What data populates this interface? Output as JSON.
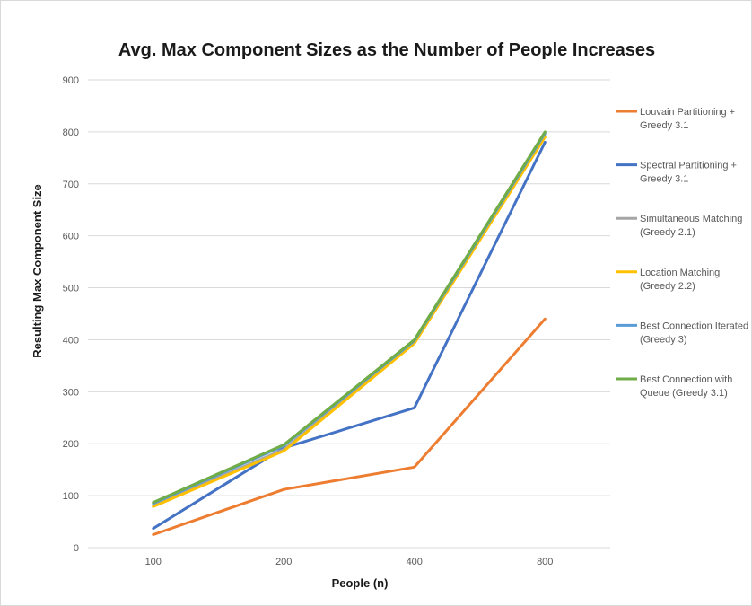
{
  "chart_data": {
    "type": "line",
    "title": "Avg. Max Component Sizes as the Number of People Increases",
    "xlabel": "People (n)",
    "ylabel": "Resulting Max Component Size",
    "categories": [
      "100",
      "200",
      "400",
      "800"
    ],
    "ylim": [
      0,
      900
    ],
    "yticks": [
      "0",
      "100",
      "200",
      "300",
      "400",
      "500",
      "600",
      "700",
      "800",
      "900"
    ],
    "grid": true,
    "legend_position": "right",
    "series": [
      {
        "name": "Louvain Partitioning + Greedy 3.1",
        "name_lines": [
          "Louvain Partitioning +",
          "Greedy 3.1"
        ],
        "color": "#ED7D31",
        "values": [
          25,
          112,
          155,
          440
        ]
      },
      {
        "name": "Spectral Partitioning + Greedy 3.1",
        "name_lines": [
          "Spectral Partitioning +",
          "Greedy 3.1"
        ],
        "color": "#4472C4",
        "values": [
          37,
          192,
          269,
          780
        ]
      },
      {
        "name": "Simultaneous Matching (Greedy 2.1)",
        "name_lines": [
          "Simultaneous Matching",
          "(Greedy 2.1)"
        ],
        "color": "#A5A5A5",
        "values": [
          81,
          189,
          394,
          792
        ]
      },
      {
        "name": "Location Matching (Greedy 2.2)",
        "name_lines": [
          "Location Matching",
          "(Greedy 2.2)"
        ],
        "color": "#FFC000",
        "values": [
          79,
          186,
          393,
          790
        ]
      },
      {
        "name": "Best Connection Iterated (Greedy 3)",
        "name_lines": [
          "Best Connection Iterated",
          "(Greedy 3)"
        ],
        "color": "#5B9BD5",
        "values": [
          85,
          196,
          398,
          797
        ]
      },
      {
        "name": "Best Connection with Queue (Greedy 3.1)",
        "name_lines": [
          "Best Connection with",
          "Queue (Greedy 3.1)"
        ],
        "color": "#70AD47",
        "values": [
          87,
          198,
          400,
          800
        ]
      }
    ]
  }
}
